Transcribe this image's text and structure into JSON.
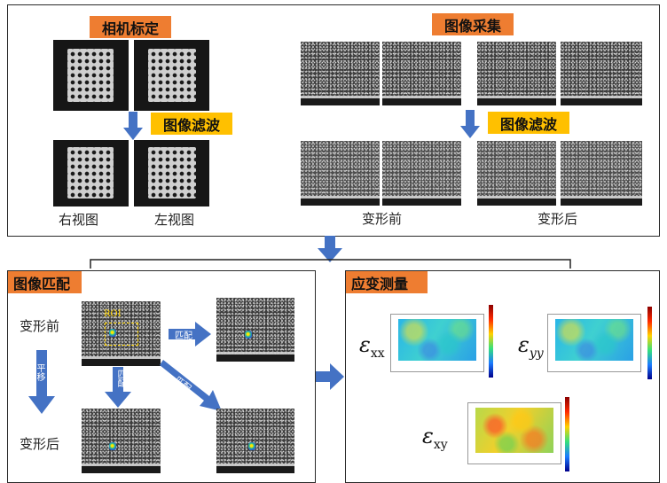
{
  "colors": {
    "orange": "#ee7d31",
    "yellow": "#ffc000",
    "arrow_blue": "#4472c4",
    "roi": "#ffd400"
  },
  "calibration": {
    "title": "相机标定",
    "filter_label": "图像滤波",
    "captions": [
      "右视图",
      "左视图"
    ]
  },
  "acquisition": {
    "title": "图像采集",
    "filter_label": "图像滤波",
    "captions": [
      "变形前",
      "变形后"
    ]
  },
  "matching": {
    "title": "图像匹配",
    "row_labels": [
      "变形前",
      "变形后"
    ],
    "roi_label": "ROI",
    "arrow_labels": {
      "right": "匹配",
      "down": "匹配",
      "diagonal": "匹配",
      "left_vertical": "平移"
    }
  },
  "strain": {
    "title": "应变测量",
    "symbol": "ε",
    "components": [
      "xx",
      "yy",
      "xy"
    ]
  }
}
